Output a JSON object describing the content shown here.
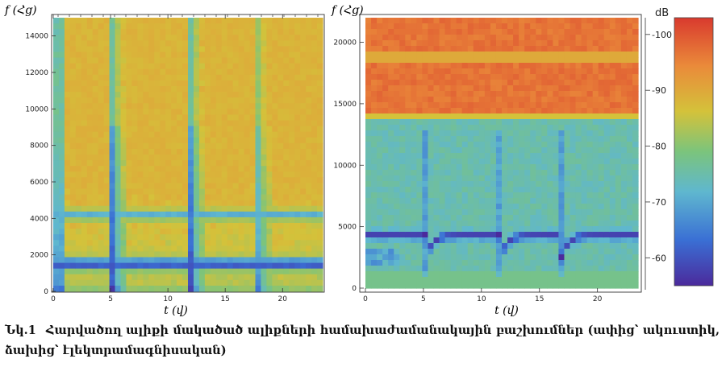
{
  "caption": {
    "number": "Նկ.1",
    "text": "Հարվածող ալիքի մակածած ալիքների համախաժամանակային բաշխումներ (ափից՝ ակուստիկ, ձախից՝ էլեկտրամագնիսական)"
  },
  "colors": {
    "low": "#4b2a9c",
    "blue": "#3a6fd4",
    "cyan": "#5fb7cf",
    "green": "#7bc47c",
    "yellow": "#d4c23a",
    "orange": "#ea8a3a",
    "high": "#d93a2e"
  },
  "chart_data": [
    {
      "type": "heatmap",
      "title": "",
      "xlabel": "t (վ)",
      "ylabel": "f (Հց)",
      "xlim": [
        0,
        23.5
      ],
      "ylim": [
        0,
        15000
      ],
      "xticks": [
        0,
        5,
        10,
        15,
        20
      ],
      "yticks": [
        0,
        2000,
        4000,
        6000,
        8000,
        10000,
        12000,
        14000
      ],
      "bands": [
        {
          "f": 1500,
          "level": 0.06
        },
        {
          "f": 4200,
          "level": 0.12
        }
      ],
      "events": [
        5.2,
        12.0,
        17.6
      ]
    },
    {
      "type": "heatmap",
      "title": "",
      "xlabel": "t (վ)",
      "ylabel": "f (Հց)",
      "xlim": [
        0,
        23.5
      ],
      "ylim": [
        0,
        22000
      ],
      "xticks": [
        0,
        5,
        10,
        15,
        20
      ],
      "yticks": [
        0,
        5000,
        10000,
        15000,
        20000
      ],
      "bands": [
        {
          "f": 4300,
          "level": 0.05
        },
        {
          "f": 2800,
          "level": 0.2
        },
        {
          "f": 18500,
          "level": 0.68
        }
      ],
      "events": [
        5.2,
        11.6,
        16.8
      ],
      "colorbar": {
        "label": "dB",
        "range": [
          -55,
          -103
        ],
        "ticks": [
          -60,
          -70,
          -80,
          -90,
          -100
        ]
      }
    }
  ]
}
